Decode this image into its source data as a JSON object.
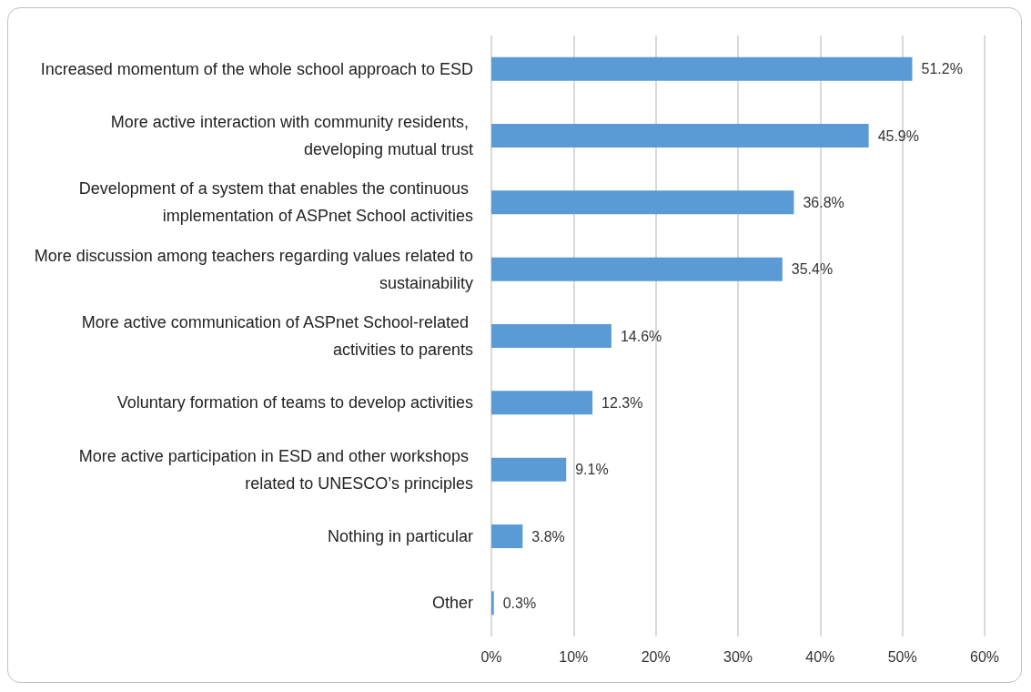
{
  "chart_data": {
    "type": "bar",
    "orientation": "horizontal",
    "categories": [
      "Increased momentum of the whole school approach to ESD",
      "More active interaction with community residents, developing mutual trust",
      "Development of a system that enables the continuous implementation of ASPnet School activities",
      "More discussion among teachers regarding values related to sustainability",
      "More active communication of ASPnet School-related activities to parents",
      "Voluntary formation of teams to develop activities",
      "More active participation in ESD and other workshops related to UNESCO’s principles",
      "Nothing in particular",
      "Other"
    ],
    "values": [
      51.2,
      45.9,
      36.8,
      35.4,
      14.6,
      12.3,
      9.1,
      3.8,
      0.3
    ],
    "value_labels": [
      "51.2%",
      "45.9%",
      "36.8%",
      "35.4%",
      "14.6%",
      "12.3%",
      "9.1%",
      "3.8%",
      "0.3%"
    ],
    "color": "#5b9bd5",
    "xlim": [
      0,
      60
    ],
    "xticks": [
      {
        "value": 0,
        "label": "0%"
      },
      {
        "value": 10,
        "label": "10%"
      },
      {
        "value": 20,
        "label": "20%"
      },
      {
        "value": 30,
        "label": "30%"
      },
      {
        "value": 40,
        "label": "40%"
      },
      {
        "value": 50,
        "label": "50%"
      },
      {
        "value": 60,
        "label": "60%"
      }
    ],
    "grid": "x"
  }
}
